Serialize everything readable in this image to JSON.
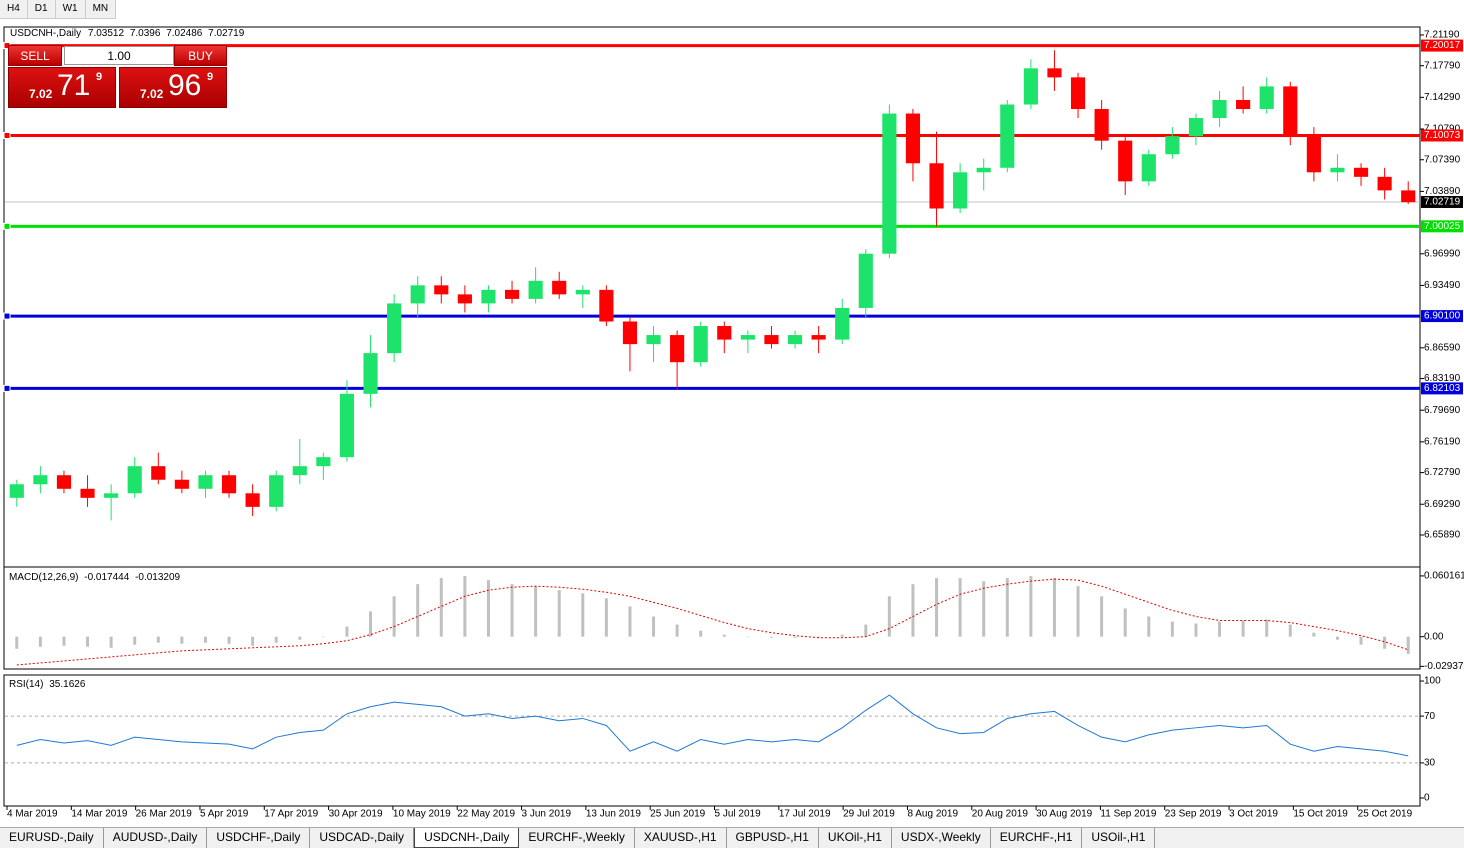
{
  "toolbar": [
    "H4",
    "D1",
    "W1",
    "MN"
  ],
  "trade_panel": {
    "sell": "SELL",
    "buy": "BUY",
    "lots": "1.00",
    "bid": {
      "big_figure": "7.02",
      "pips": "71",
      "fraction": "9"
    },
    "ask": {
      "big_figure": "7.02",
      "pips": "96",
      "fraction": "9"
    }
  },
  "chart_data": [
    {
      "type": "candlestick",
      "symbol": "USDCNH-,Daily",
      "ohlc": [
        7.03512,
        7.0396,
        7.02486,
        7.02719
      ],
      "up_color": "#1ee36a",
      "down_color": "#ff0000",
      "ylim": [
        6.6246,
        7.2196
      ],
      "yticks": [
        {
          "value": 7.2119,
          "label": "7.21190"
        },
        {
          "value": 7.1779,
          "label": "7.17790"
        },
        {
          "value": 7.1429,
          "label": "7.14290"
        },
        {
          "value": 7.1079,
          "label": "7.10790"
        },
        {
          "value": 7.0739,
          "label": "7.07390"
        },
        {
          "value": 7.0389,
          "label": "7.03890"
        },
        {
          "value": 6.9699,
          "label": "6.96990"
        },
        {
          "value": 6.9349,
          "label": "6.93490"
        },
        {
          "value": 6.8659,
          "label": "6.86590"
        },
        {
          "value": 6.8319,
          "label": "6.83190"
        },
        {
          "value": 6.7969,
          "label": "6.79690"
        },
        {
          "value": 6.7619,
          "label": "6.76190"
        },
        {
          "value": 6.7279,
          "label": "6.72790"
        },
        {
          "value": 6.6929,
          "label": "6.69290"
        },
        {
          "value": 6.6589,
          "label": "6.65890"
        }
      ],
      "current": 7.02719,
      "levels": [
        {
          "value": 7.20017,
          "label": "7.20017",
          "color": "#ff0000"
        },
        {
          "value": 7.10073,
          "label": "7.10073",
          "color": "#ff0000"
        },
        {
          "value": 7.00025,
          "label": "7.00025",
          "color": "#00e000"
        },
        {
          "value": 6.901,
          "label": "6.90100",
          "color": "#0000dd"
        },
        {
          "value": 6.82103,
          "label": "6.82103",
          "color": "#0000dd"
        }
      ],
      "xlabels": [
        "4 Mar 2019",
        "14 Mar 2019",
        "26 Mar 2019",
        "5 Apr 2019",
        "17 Apr 2019",
        "30 Apr 2019",
        "10 May 2019",
        "22 May 2019",
        "3 Jun 2019",
        "13 Jun 2019",
        "25 Jun 2019",
        "5 Jul 2019",
        "17 Jul 2019",
        "29 Jul 2019",
        "8 Aug 2019",
        "20 Aug 2019",
        "30 Aug 2019",
        "11 Sep 2019",
        "23 Sep 2019",
        "3 Oct 2019",
        "15 Oct 2019",
        "25 Oct 2019"
      ],
      "open": [
        6.7,
        6.715,
        6.725,
        6.71,
        6.7,
        6.705,
        6.735,
        6.72,
        6.71,
        6.725,
        6.705,
        6.69,
        6.725,
        6.735,
        6.745,
        6.815,
        6.86,
        6.915,
        6.935,
        6.925,
        6.915,
        6.93,
        6.92,
        6.94,
        6.925,
        6.93,
        6.895,
        6.87,
        6.88,
        6.85,
        6.89,
        6.875,
        6.88,
        6.87,
        6.88,
        6.875,
        6.91,
        6.97,
        7.125,
        7.07,
        7.02,
        7.06,
        7.065,
        7.135,
        7.175,
        7.165,
        7.13,
        7.095,
        7.05,
        7.08,
        7.1,
        7.12,
        7.14,
        7.13,
        7.155,
        7.1,
        7.06,
        7.065,
        7.055,
        7.04
      ],
      "high": [
        6.72,
        6.735,
        6.73,
        6.725,
        6.715,
        6.745,
        6.75,
        6.73,
        6.73,
        6.73,
        6.715,
        6.73,
        6.765,
        6.75,
        6.83,
        6.88,
        6.925,
        6.945,
        6.945,
        6.935,
        6.935,
        6.94,
        6.955,
        6.95,
        6.935,
        6.935,
        6.9,
        6.89,
        6.885,
        6.895,
        6.895,
        6.885,
        6.89,
        6.885,
        6.89,
        6.92,
        6.975,
        7.135,
        7.13,
        7.105,
        7.07,
        7.075,
        7.14,
        7.185,
        7.195,
        7.17,
        7.14,
        7.1,
        7.085,
        7.11,
        7.125,
        7.15,
        7.155,
        7.165,
        7.16,
        7.11,
        7.08,
        7.07,
        7.065,
        7.05
      ],
      "low": [
        6.69,
        6.705,
        6.705,
        6.69,
        6.675,
        6.7,
        6.715,
        6.705,
        6.7,
        6.7,
        6.68,
        6.685,
        6.715,
        6.72,
        6.74,
        6.8,
        6.85,
        6.9,
        6.915,
        6.905,
        6.905,
        6.915,
        6.915,
        6.92,
        6.91,
        6.89,
        6.84,
        6.85,
        6.82,
        6.845,
        6.86,
        6.86,
        6.865,
        6.865,
        6.86,
        6.87,
        6.9,
        6.965,
        7.05,
        7.0,
        7.015,
        7.04,
        7.06,
        7.13,
        7.15,
        7.12,
        7.085,
        7.035,
        7.045,
        7.075,
        7.09,
        7.11,
        7.125,
        7.125,
        7.09,
        7.05,
        7.05,
        7.045,
        7.03,
        7.025
      ],
      "close": [
        6.715,
        6.725,
        6.71,
        6.7,
        6.705,
        6.735,
        6.72,
        6.71,
        6.725,
        6.705,
        6.69,
        6.725,
        6.735,
        6.745,
        6.815,
        6.86,
        6.915,
        6.935,
        6.925,
        6.915,
        6.93,
        6.92,
        6.94,
        6.925,
        6.93,
        6.895,
        6.87,
        6.88,
        6.85,
        6.89,
        6.875,
        6.88,
        6.87,
        6.88,
        6.875,
        6.91,
        6.97,
        7.125,
        7.07,
        7.02,
        7.06,
        7.065,
        7.135,
        7.175,
        7.165,
        7.13,
        7.095,
        7.05,
        7.08,
        7.1,
        7.12,
        7.14,
        7.13,
        7.155,
        7.1,
        7.06,
        7.065,
        7.055,
        7.04,
        7.027
      ]
    },
    {
      "type": "macd",
      "name": "MACD(12,26,9)",
      "readout": [
        -0.017444,
        -0.013209
      ],
      "ylim": [
        -0.031,
        0.068
      ],
      "yticks": [
        0.060161,
        {
          "value": 0,
          "label": "0.00"
        },
        -0.029378
      ],
      "histogram_color": "#c0c0c0",
      "signal_color": "#e00000",
      "histogram": [
        -0.012,
        -0.01,
        -0.009,
        -0.01,
        -0.011,
        -0.008,
        -0.006,
        -0.007,
        -0.006,
        -0.007,
        -0.009,
        -0.006,
        -0.003,
        0.0,
        0.01,
        0.025,
        0.04,
        0.052,
        0.058,
        0.06,
        0.056,
        0.052,
        0.05,
        0.046,
        0.043,
        0.038,
        0.03,
        0.02,
        0.012,
        0.006,
        0.002,
        0.0,
        -0.001,
        -0.001,
        -0.001,
        0.002,
        0.012,
        0.04,
        0.052,
        0.058,
        0.058,
        0.055,
        0.058,
        0.06,
        0.058,
        0.05,
        0.04,
        0.028,
        0.02,
        0.015,
        0.013,
        0.015,
        0.016,
        0.017,
        0.012,
        0.004,
        -0.003,
        -0.008,
        -0.012,
        -0.017
      ],
      "signal": [
        -0.028,
        -0.026,
        -0.024,
        -0.022,
        -0.02,
        -0.018,
        -0.016,
        -0.014,
        -0.013,
        -0.012,
        -0.011,
        -0.01,
        -0.009,
        -0.007,
        -0.004,
        0.002,
        0.01,
        0.02,
        0.03,
        0.04,
        0.046,
        0.049,
        0.05,
        0.049,
        0.047,
        0.044,
        0.04,
        0.034,
        0.028,
        0.021,
        0.014,
        0.008,
        0.004,
        0.001,
        -0.001,
        -0.001,
        0.0,
        0.008,
        0.02,
        0.032,
        0.042,
        0.048,
        0.052,
        0.055,
        0.057,
        0.056,
        0.05,
        0.042,
        0.034,
        0.026,
        0.02,
        0.016,
        0.016,
        0.016,
        0.014,
        0.01,
        0.006,
        0.001,
        -0.005,
        -0.013
      ]
    },
    {
      "type": "rsi",
      "name": "RSI(14)",
      "readout": 35.1626,
      "ylim": [
        -6,
        104.3
      ],
      "yticks": [
        100,
        70,
        30,
        0
      ],
      "levels": [
        70,
        30
      ],
      "color": "#1e78d2",
      "values": [
        45,
        50,
        47,
        49,
        45,
        52,
        50,
        48,
        47,
        46,
        42,
        52,
        56,
        58,
        72,
        78,
        82,
        80,
        78,
        70,
        72,
        68,
        70,
        66,
        68,
        62,
        40,
        48,
        40,
        50,
        46,
        50,
        48,
        50,
        48,
        60,
        75,
        88,
        72,
        60,
        55,
        56,
        68,
        72,
        74,
        62,
        52,
        48,
        54,
        58,
        60,
        62,
        60,
        62,
        46,
        40,
        44,
        42,
        40,
        36
      ]
    }
  ],
  "tabs": {
    "active": 4,
    "items": [
      "EURUSD-,Daily",
      "AUDUSD-,Daily",
      "USDCHF-,Daily",
      "USDCAD-,Daily",
      "USDCNH-,Daily",
      "EURCHF-,Weekly",
      "XAUUSD-,H1",
      "GBPUSD-,H1",
      "UKOil-,H1",
      "USDX-,Weekly",
      "EURCHF-,H1",
      "USOil-,H1"
    ]
  }
}
